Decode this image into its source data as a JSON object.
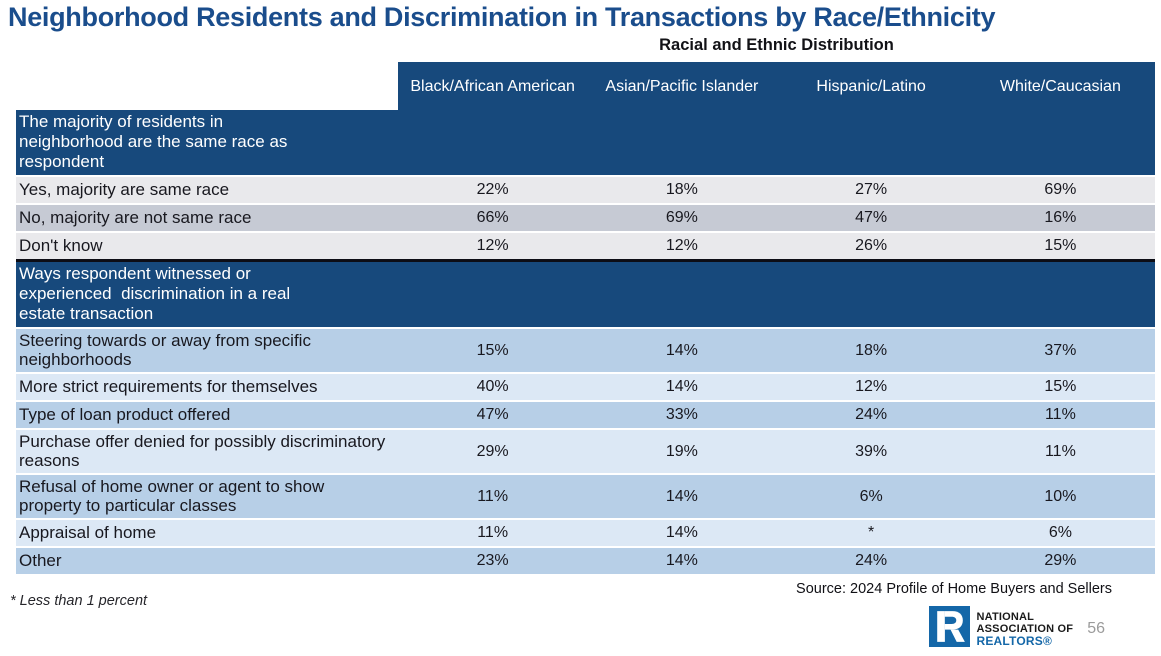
{
  "header": {
    "title": "Neighborhood Residents and Discrimination in Transactions by Race/Ethnicity",
    "subtitle": "Racial and Ethnic Distribution"
  },
  "chart_data": {
    "type": "table",
    "title": "Neighborhood Residents and Discrimination in Transactions by Race/Ethnicity",
    "subtitle": "Racial and Ethnic Distribution",
    "columns": [
      "Black/African American",
      "Asian/Pacific Islander",
      "Hispanic/Latino",
      "White/Caucasian"
    ],
    "sections": [
      {
        "header": "The majority of residents in neighborhood are the same race as respondent",
        "rows": [
          {
            "label": "Yes, majority are same race",
            "values": [
              "22%",
              "18%",
              "27%",
              "69%"
            ]
          },
          {
            "label": "No, majority are not same race",
            "values": [
              "66%",
              "69%",
              "47%",
              "16%"
            ]
          },
          {
            "label": "Don't know",
            "values": [
              "12%",
              "12%",
              "26%",
              "15%"
            ]
          }
        ]
      },
      {
        "header": "Ways respondent witnessed or experienced  discrimination in a real estate transaction",
        "rows": [
          {
            "label": "Steering towards or away from specific neighborhoods",
            "values": [
              "15%",
              "14%",
              "18%",
              "37%"
            ]
          },
          {
            "label": "More strict requirements for themselves",
            "values": [
              "40%",
              "14%",
              "12%",
              "15%"
            ]
          },
          {
            "label": "Type of loan product offered",
            "values": [
              "47%",
              "33%",
              "24%",
              "11%"
            ]
          },
          {
            "label": "Purchase offer denied for possibly discriminatory reasons",
            "values": [
              "29%",
              "19%",
              "39%",
              "11%"
            ]
          },
          {
            "label": "Refusal of home owner or agent to show property to particular classes",
            "values": [
              "11%",
              "14%",
              "6%",
              "10%"
            ]
          },
          {
            "label": "Appraisal of home",
            "values": [
              "11%",
              "14%",
              "*",
              "6%"
            ]
          },
          {
            "label": "Other",
            "values": [
              "23%",
              "14%",
              "24%",
              "29%"
            ]
          }
        ]
      }
    ]
  },
  "footer": {
    "footnote": "* Less than 1 percent",
    "source": "Source: 2024 Profile of Home Buyers and Sellers",
    "page_number": "56",
    "logo": {
      "line1": "NATIONAL",
      "line2": "ASSOCIATION OF",
      "line3": "REALTORS®"
    }
  },
  "colors": {
    "navy": "#17497C",
    "titleBlue": "#1A4D8C",
    "grayLight": "#E9E9EC",
    "grayMed": "#C6CAD4",
    "blueMed": "#B7CFE7",
    "blueLight": "#DCE8F5",
    "lineBlack": "#0D0D15",
    "textDark": "#18181F",
    "narBlue": "#1467A8",
    "pageGray": "#9B9B9B"
  }
}
